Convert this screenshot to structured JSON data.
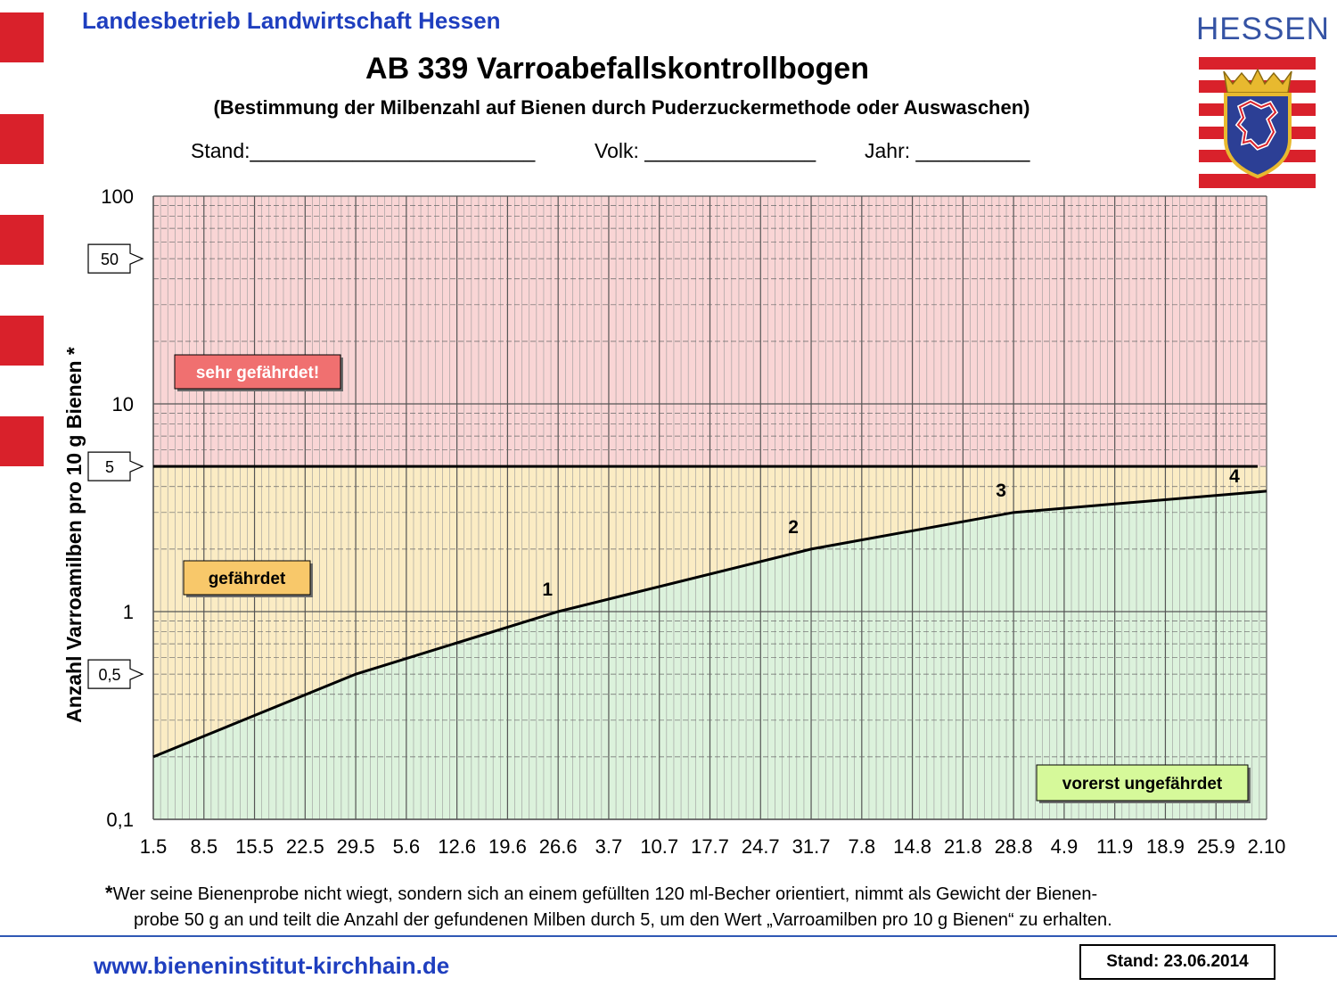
{
  "header": {
    "organization": "Landesbetrieb Landwirtschaft Hessen",
    "title": "AB 339 Varroabefallskontrollbogen",
    "subtitle": "(Bestimmung der Milbenzahl auf Bienen durch Puderzuckermethode oder Auswaschen)",
    "form_fields": {
      "stand": "Stand:_________________________",
      "volk": "Volk: _______________",
      "jahr": "Jahr: __________"
    },
    "brand": "HESSEN"
  },
  "colors": {
    "accent_red": "#d9212b",
    "link_blue": "#1f3fbf",
    "zone_red": "#f9d5d5",
    "zone_yellow": "#fbecc4",
    "zone_green": "#dcf2dc",
    "label_red": "#f07070",
    "label_orange": "#f8c86a",
    "label_green": "#d6f99a"
  },
  "chart_data": {
    "type": "line",
    "x_scale": "category",
    "y_scale": "log",
    "ylim": [
      0.1,
      100
    ],
    "ylabel": "Anzahl Varroamilben pro 10 g Bienen *",
    "grid": true,
    "categories": [
      "1.5",
      "8.5",
      "15.5",
      "22.5",
      "29.5",
      "5.6",
      "12.6",
      "19.6",
      "26.6",
      "3.7",
      "10.7",
      "17.7",
      "24.7",
      "31.7",
      "7.8",
      "14.8",
      "21.8",
      "28.8",
      "4.9",
      "11.9",
      "18.9",
      "25.9",
      "2.10"
    ],
    "y_tick_labels": [
      "100",
      "10",
      "1",
      "0,1"
    ],
    "y_tick_values": [
      100,
      10,
      1,
      0.1
    ],
    "threshold": 5,
    "threshold_series": {
      "x": [
        "1.5",
        "29.5",
        "26.6",
        "31.7",
        "28.8",
        "2.10"
      ],
      "y": [
        0.2,
        0.5,
        1.0,
        2.0,
        3.0,
        3.8
      ]
    },
    "point_labels": [
      {
        "text": "1",
        "x": "26.6",
        "y": 1.0
      },
      {
        "text": "2",
        "x": "31.7",
        "y": 2.0
      },
      {
        "text": "3",
        "x": "28.8",
        "y": 3.0
      },
      {
        "text": "4",
        "x": "2.10",
        "y": 3.8
      }
    ],
    "callouts": [
      {
        "text": "50",
        "value": 50
      },
      {
        "text": "5",
        "value": 5
      },
      {
        "text": "0,5",
        "value": 0.5
      }
    ],
    "zones": [
      {
        "label": "sehr gefährdet!",
        "from": 5,
        "to": 100
      },
      {
        "label": "gefährdet",
        "from": "curve",
        "to": 5
      },
      {
        "label": "vorerst ungefährdet",
        "from": 0.1,
        "to": "curve"
      }
    ]
  },
  "footnote": {
    "star": "*",
    "line1": "Wer seine Bienenprobe nicht wiegt, sondern sich an einem gefüllten 120 ml-Becher orientiert, nimmt als Gewicht der Bienen-",
    "line2": "probe 50 g an und teilt die Anzahl der gefundenen Milben durch 5, um den Wert „Varroamilben pro 10 g Bienen“ zu erhalten."
  },
  "footer": {
    "website": "www.bieneninstitut-kirchhain.de",
    "date": "Stand: 23.06.2014"
  }
}
